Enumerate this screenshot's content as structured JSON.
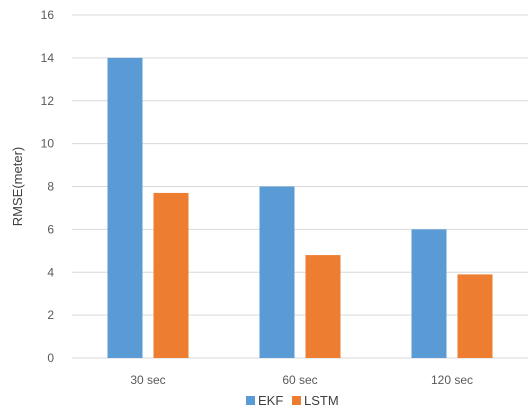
{
  "chart_data": {
    "type": "bar",
    "categories": [
      "30 sec",
      "60 sec",
      "120 sec"
    ],
    "series": [
      {
        "name": "EKF",
        "values": [
          14,
          8,
          6
        ],
        "color": "#5B9BD5"
      },
      {
        "name": "LSTM",
        "values": [
          7.7,
          4.8,
          3.9
        ],
        "color": "#ED7D31"
      }
    ],
    "title": "",
    "xlabel": "",
    "ylabel": "RMSE(meter)",
    "ylim": [
      0,
      16
    ],
    "yticks": [
      0,
      2,
      4,
      6,
      8,
      10,
      12,
      14,
      16
    ],
    "grid": true,
    "gridline_color": "#D9D9D9",
    "legend_position": "bottom"
  }
}
